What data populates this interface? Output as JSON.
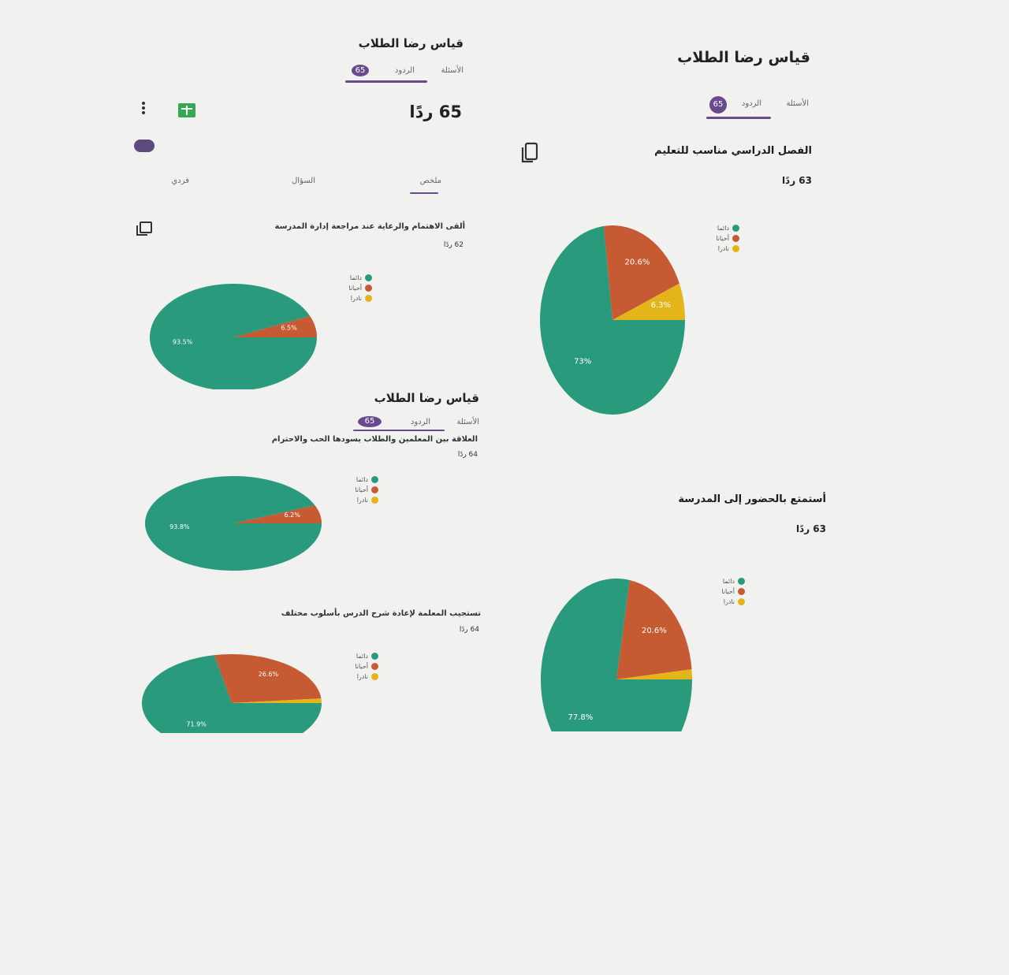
{
  "colors": {
    "green": "#2a9a7c",
    "red": "#c65a33",
    "yellow": "#e3b51a",
    "accent": "#6a4a8f",
    "sheets": "#34a853"
  },
  "right_panel": {
    "title": "قياس رضا الطلاب",
    "tabs": [
      {
        "label": "الأسئلة"
      },
      {
        "label": "الردود",
        "badge": "65"
      }
    ]
  },
  "left_panel": {
    "title": "قياس رضا الطلاب",
    "tabs": [
      {
        "label": "الأسئلة"
      },
      {
        "label": "الردود",
        "badge": "65"
      }
    ],
    "responses_heading": "65 ردًا",
    "subtabs": [
      {
        "label": "ملخص"
      },
      {
        "label": "السؤال"
      },
      {
        "label": "فردي"
      }
    ],
    "sheets_icon": "sheets-icon",
    "more_icon": "more-vert-icon"
  },
  "middle_panel": {
    "title": "قياس رضا الطلاب",
    "tabs": [
      {
        "label": "الأسئلة"
      },
      {
        "label": "الردود",
        "badge": "65"
      }
    ]
  },
  "legend_labels": [
    "دائما",
    "أحيانا",
    "نادرا"
  ],
  "chart_data": [
    {
      "type": "pie",
      "id": "q1",
      "title": "الفصل الدراسي مناسب للتعليم",
      "count_label": "63 ردًا",
      "categories": [
        "دائما",
        "أحيانا",
        "نادرا"
      ],
      "values": [
        73,
        20.6,
        6.3
      ],
      "value_labels": [
        "73%",
        "20.6%",
        "6.3%"
      ]
    },
    {
      "type": "pie",
      "id": "q2",
      "title": "أستمتع بالحضور إلى المدرسة",
      "count_label": "63 ردًا",
      "categories": [
        "دائما",
        "أحيانا",
        "نادرا"
      ],
      "values": [
        77.8,
        20.6,
        1.6
      ],
      "value_labels": [
        "77.8%",
        "20.6%",
        ""
      ]
    },
    {
      "type": "pie",
      "id": "q3",
      "title": "ألقى الاهتمام والرعاية عند مراجعة إدارة المدرسة",
      "count_label": "62 ردًا",
      "categories": [
        "دائما",
        "أحيانا",
        "نادرا"
      ],
      "values": [
        93.5,
        6.5,
        0
      ],
      "value_labels": [
        "93.5%",
        "6.5%",
        ""
      ]
    },
    {
      "type": "pie",
      "id": "q4",
      "title": "العلاقة بين المعلمين والطلاب يسودها الحب والاحترام",
      "count_label": "64 ردًا",
      "categories": [
        "دائما",
        "أحيانا",
        "نادرا"
      ],
      "values": [
        93.8,
        6.2,
        0
      ],
      "value_labels": [
        "93.8%",
        "6.2%",
        ""
      ]
    },
    {
      "type": "pie",
      "id": "q5",
      "title": "تستجيب المعلمة لإعادة شرح الدرس بأسلوب مختلف",
      "count_label": "64 ردًا",
      "categories": [
        "دائما",
        "أحيانا",
        "نادرا"
      ],
      "values": [
        71.9,
        26.6,
        1.5
      ],
      "value_labels": [
        "71.9%",
        "26.6%",
        ""
      ]
    }
  ]
}
